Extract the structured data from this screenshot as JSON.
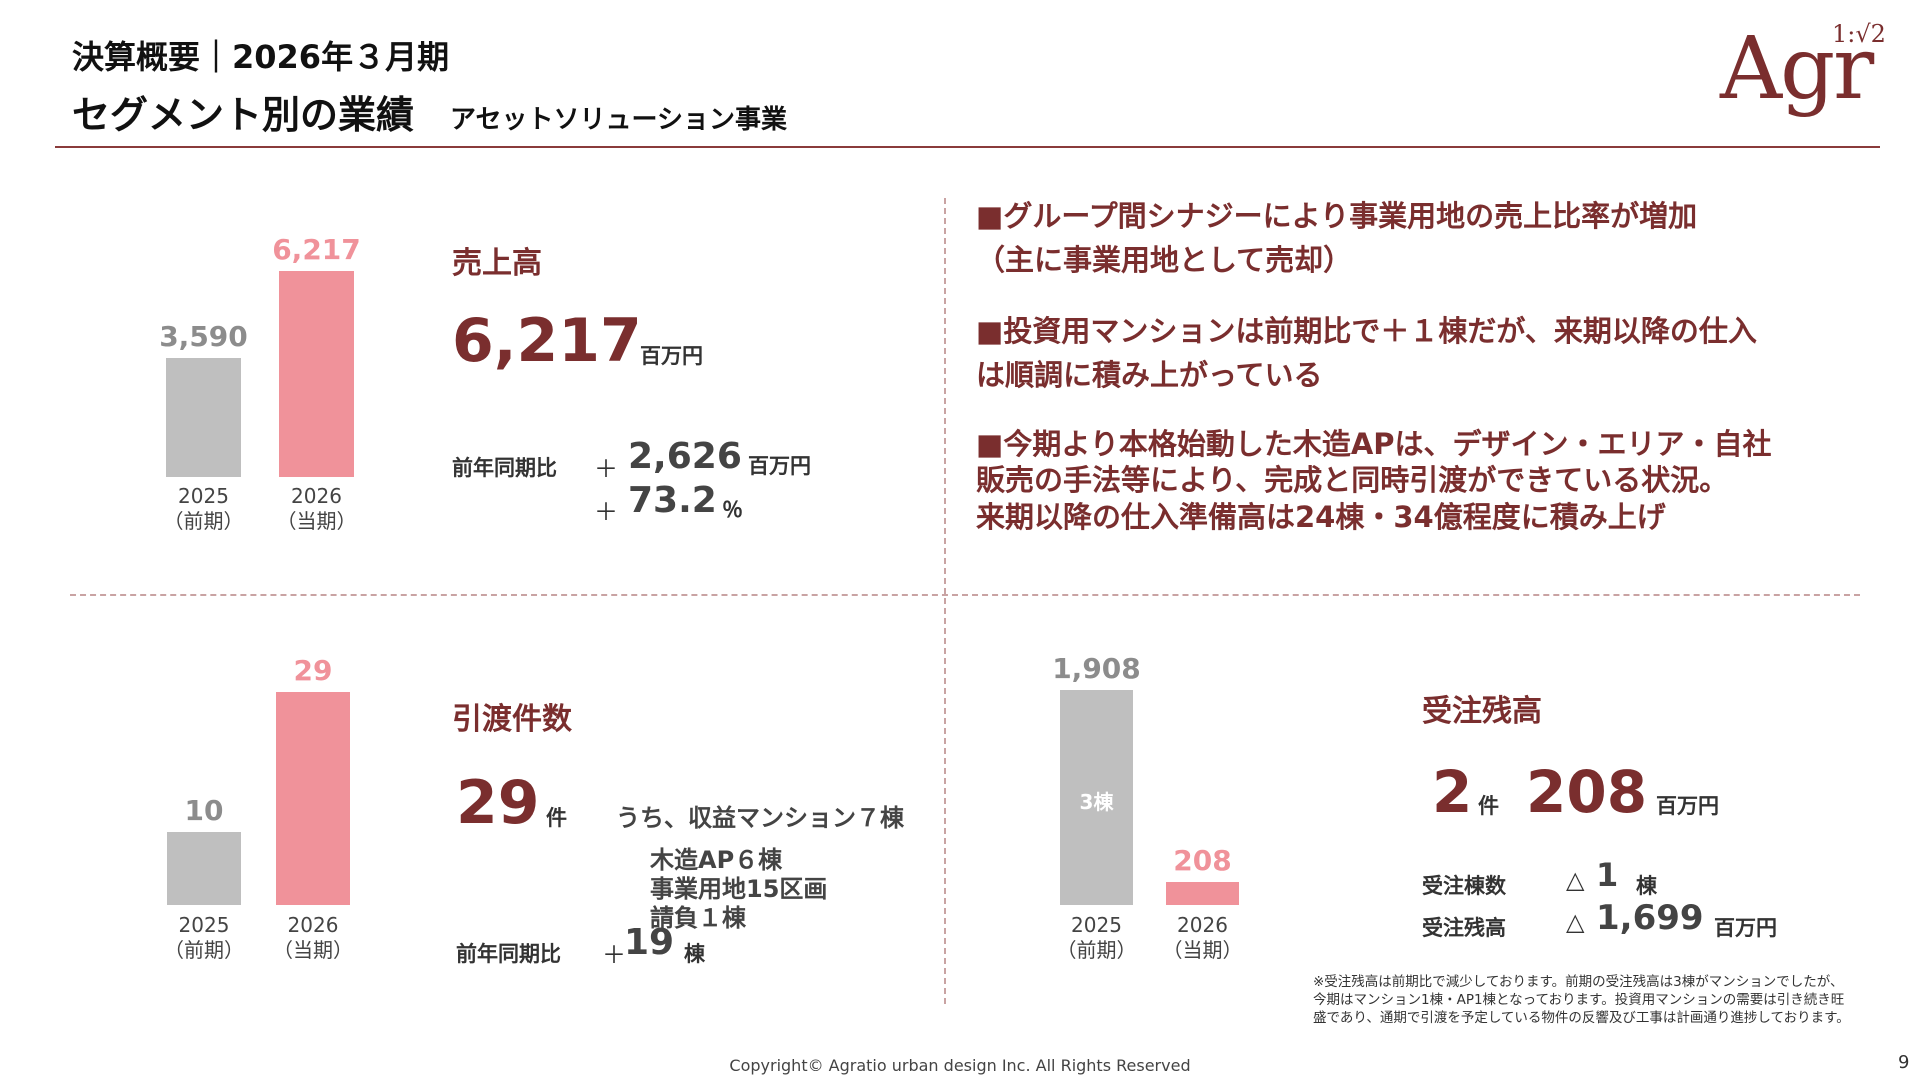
{
  "header": {
    "title_line1": "決算概要｜2026年３月期",
    "title_line2": "セグメント別の業績",
    "segment": "アセットソリューション事業"
  },
  "logo": {
    "text": "Agr",
    "ratio": "1:√2"
  },
  "colors": {
    "accent": "#7a2e2e",
    "bar_prev": "#bfbfbf",
    "bar_curr": "#f0929a",
    "divider": "#c9a3a3"
  },
  "sales": {
    "title": "売上高",
    "value": "6,217",
    "unit": "百万円",
    "yoy_label": "前年同期比",
    "diff_sign": "＋",
    "diff_value": "2,626",
    "diff_unit": "百万円",
    "pct_sign": "＋",
    "pct_value": "73.2",
    "pct_unit": "％"
  },
  "bullets": {
    "b1_line1": "■グループ間シナジーにより事業用地の売上比率が増加",
    "b1_line2": "（主に事業用地として売却）",
    "b2_line1": "■投資用マンションは前期比で＋１棟だが、来期以降の仕入",
    "b2_line2": "は順調に積み上がっている",
    "b3_line1": "■今期より本格始動した木造APは、デザイン・エリア・自社",
    "b3_line2": "販売の手法等により、完成と同時引渡ができている状況。",
    "b3_line3": "来期以降の仕入準備高は24棟・34億程度に積み上げ"
  },
  "delivery": {
    "title": "引渡件数",
    "value": "29",
    "unit": "件",
    "breakdown_1": "うち、収益マンション７棟",
    "breakdown_2": "木造AP６棟",
    "breakdown_3": "事業用地15区画",
    "breakdown_4": "請負１棟",
    "yoy_label": "前年同期比",
    "yoy_sign": "＋",
    "yoy_value": "19",
    "yoy_unit": "棟"
  },
  "backlog": {
    "title": "受注残高",
    "count_value": "2",
    "count_unit": "件",
    "amount_value": "208",
    "amount_unit": "百万円",
    "row1_label": "受注棟数",
    "row1_sign": "△",
    "row1_value": "1",
    "row1_unit": "棟",
    "row2_label": "受注残高",
    "row2_sign": "△",
    "row2_value": "1,699",
    "row2_unit": "百万円",
    "note": "※受注残高は前期比で減少しております。前期の受注残高は3棟がマンションでしたが、今期はマンション1棟・AP1棟となっております。投資用マンションの需要は引き続き旺盛であり、通期で引渡を予定している物件の反響及び工事は計画通り進捗しております。"
  },
  "chart_data": [
    {
      "type": "bar",
      "categories": [
        "2025（前期）",
        "2026（当期）"
      ],
      "category_year": [
        "2025",
        "2026"
      ],
      "category_period": [
        "（前期）",
        "（当期）"
      ],
      "values": [
        3590,
        6217
      ],
      "value_labels": [
        "3,590",
        "6,217"
      ],
      "title": "",
      "ylim": [
        0,
        6217
      ]
    },
    {
      "type": "bar",
      "categories": [
        "2025（前期）",
        "2026（当期）"
      ],
      "category_year": [
        "2025",
        "2026"
      ],
      "category_period": [
        "（前期）",
        "（当期）"
      ],
      "values": [
        10,
        29
      ],
      "value_labels": [
        "10",
        "29"
      ],
      "title": "",
      "ylim": [
        0,
        29
      ]
    },
    {
      "type": "bar",
      "categories": [
        "2025（前期）",
        "2026（当期）"
      ],
      "category_year": [
        "2025",
        "2026"
      ],
      "category_period": [
        "（前期）",
        "（当期）"
      ],
      "values": [
        1908,
        208
      ],
      "value_labels": [
        "1,908",
        "208"
      ],
      "inner_labels": [
        "3棟",
        ""
      ],
      "title": "",
      "ylim": [
        0,
        1908
      ]
    }
  ],
  "footer": {
    "copyright": "Copyright© Agratio urban design Inc. All Rights Reserved",
    "page_number": "9"
  }
}
